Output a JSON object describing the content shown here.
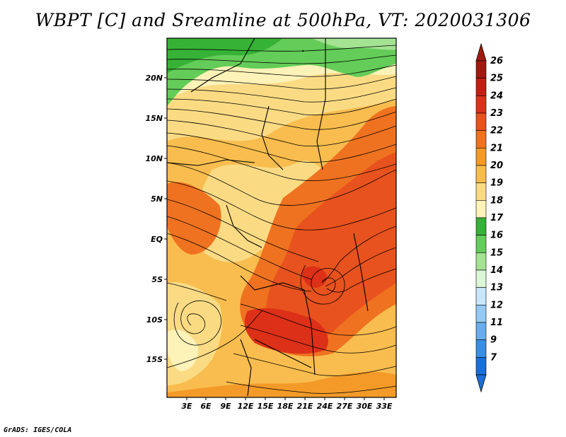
{
  "title": "WBPT [C] and Sreamline at 500hPa, VT: 2020031306",
  "credit": "GrADS: IGES/COLA",
  "map": {
    "region": "Central & East Africa",
    "lat_labels": [
      "20N",
      "15N",
      "10N",
      "5N",
      "EQ",
      "5S",
      "10S",
      "15S"
    ],
    "lon_labels": [
      "3E",
      "6E",
      "9E",
      "12E",
      "15E",
      "18E",
      "21E",
      "24E",
      "27E",
      "30E",
      "33E"
    ],
    "lon_range": [
      0,
      35
    ],
    "lat_range": [
      -20,
      25
    ],
    "features": [
      "cyclonic vortex near 20E 5S",
      "anticyclonic gyre near 3E 10S",
      "westerly jet north of 15N"
    ]
  },
  "colorbar": {
    "labels": [
      "26",
      "25",
      "24",
      "23",
      "22",
      "21",
      "20",
      "19",
      "18",
      "17",
      "16",
      "15",
      "14",
      "13",
      "12",
      "11",
      "9",
      "7"
    ],
    "colors": [
      "#a01a10",
      "#c41e14",
      "#dd3018",
      "#e8521e",
      "#ef7220",
      "#f39a28",
      "#f8bd4e",
      "#fadb84",
      "#fdf2b8",
      "#36b236",
      "#64cc58",
      "#a4e392",
      "#dcf6d8",
      "#c9e6fa",
      "#94caf3",
      "#68aeec",
      "#3a8fe3",
      "#1a6fd8"
    ],
    "top_color": "#a01a10",
    "bottom_color": "#1a6fd8"
  }
}
